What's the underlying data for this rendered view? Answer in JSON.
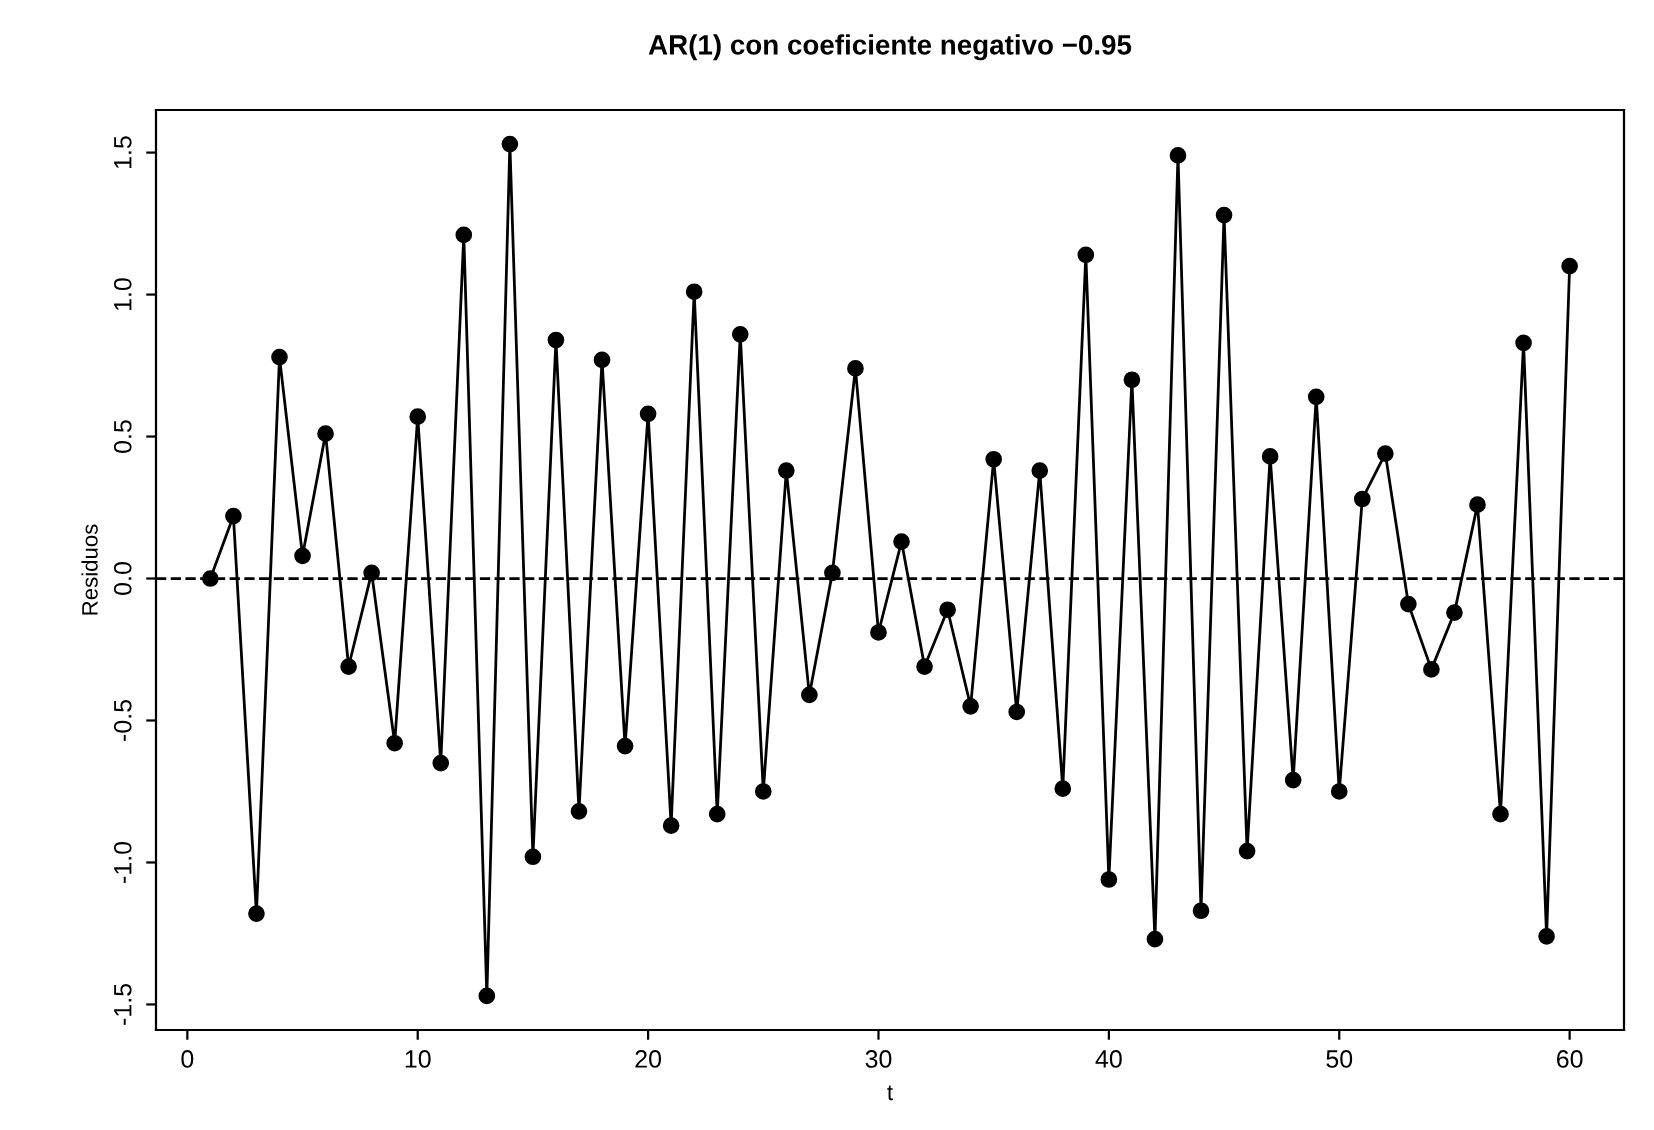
{
  "chart_data": {
    "type": "line",
    "title": "AR(1) con coeficiente negativo −0.95",
    "xlabel": "t",
    "ylabel": "Residuos",
    "x": [
      1,
      2,
      3,
      4,
      5,
      6,
      7,
      8,
      9,
      10,
      11,
      12,
      13,
      14,
      15,
      16,
      17,
      18,
      19,
      20,
      21,
      22,
      23,
      24,
      25,
      26,
      27,
      28,
      29,
      30,
      31,
      32,
      33,
      34,
      35,
      36,
      37,
      38,
      39,
      40,
      41,
      42,
      43,
      44,
      45,
      46,
      47,
      48,
      49,
      50,
      51,
      52,
      53,
      54,
      55,
      56,
      57,
      58,
      59,
      60
    ],
    "series": [
      {
        "color": "#000000",
        "values": [
          0.0,
          0.22,
          -1.18,
          0.78,
          0.08,
          0.51,
          -0.31,
          0.02,
          -0.58,
          0.57,
          -0.65,
          1.21,
          -1.47,
          1.53,
          -0.98,
          0.84,
          -0.82,
          0.77,
          -0.59,
          0.58,
          -0.87,
          1.01,
          -0.83,
          0.86,
          -0.75,
          0.38,
          -0.41,
          0.02,
          0.74,
          -0.19,
          0.13,
          -0.31,
          -0.11,
          -0.45,
          0.42,
          -0.47,
          0.38,
          -0.74,
          1.14,
          -1.06,
          0.7,
          -1.27,
          1.49,
          -1.17,
          1.28,
          -0.96,
          0.43,
          -0.71,
          0.64,
          -0.75,
          0.28,
          0.44,
          -0.09,
          -0.32,
          -0.12,
          0.26,
          -0.83,
          0.83,
          -1.26,
          1.1
        ]
      }
    ],
    "xlim": [
      -1.36,
      62.36
    ],
    "xticks": [
      0,
      10,
      20,
      30,
      40,
      50,
      60
    ],
    "ylim": [
      -1.59,
      1.65
    ],
    "yticks": [
      -1.5,
      {
        "value": -1,
        "label": "-1.0"
      },
      -0.5,
      {
        "value": 0,
        "label": "0.0"
      },
      0.5,
      {
        "value": 1,
        "label": "1.0"
      },
      1.5
    ],
    "ref_lines": [
      {
        "axis": "y",
        "value": 0,
        "color": "#000000",
        "line_style": "dashed"
      }
    ],
    "marker": "circle",
    "line_style": "solid",
    "grid": false,
    "legend": false
  }
}
